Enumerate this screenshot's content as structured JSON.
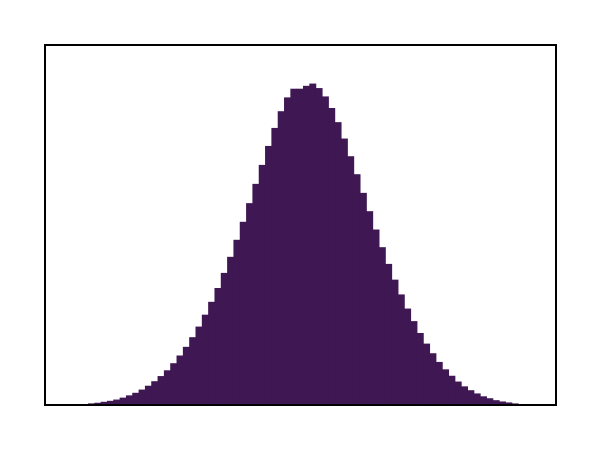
{
  "chart_data": {
    "type": "bar",
    "subtype": "histogram",
    "title": "",
    "xlabel": "",
    "ylabel": "",
    "axis_ticks_visible": false,
    "grid": false,
    "legend": "none",
    "color": "#3f1753",
    "bin_count": 68,
    "ylim": [
      0,
      1.12
    ],
    "values": [
      0.005,
      0.007,
      0.01,
      0.013,
      0.017,
      0.023,
      0.03,
      0.038,
      0.048,
      0.06,
      0.074,
      0.09,
      0.108,
      0.13,
      0.154,
      0.181,
      0.211,
      0.244,
      0.281,
      0.321,
      0.364,
      0.411,
      0.461,
      0.514,
      0.57,
      0.628,
      0.688,
      0.747,
      0.806,
      0.862,
      0.914,
      0.957,
      0.984,
      0.984,
      0.993,
      1.0,
      0.986,
      0.96,
      0.924,
      0.88,
      0.829,
      0.774,
      0.718,
      0.66,
      0.603,
      0.546,
      0.491,
      0.439,
      0.39,
      0.344,
      0.3,
      0.261,
      0.224,
      0.191,
      0.161,
      0.134,
      0.111,
      0.091,
      0.073,
      0.058,
      0.046,
      0.036,
      0.027,
      0.021,
      0.015,
      0.011,
      0.008,
      0.005
    ]
  }
}
